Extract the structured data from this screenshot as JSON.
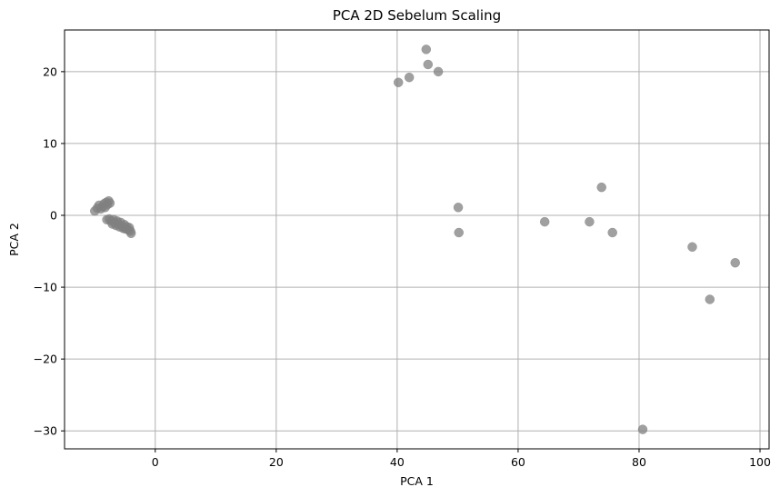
{
  "chart_data": {
    "type": "scatter",
    "title": "PCA 2D Sebelum Scaling",
    "xlabel": "PCA 1",
    "ylabel": "PCA 2",
    "xlim": [
      -15,
      101.5
    ],
    "ylim": [
      -32.5,
      25.8
    ],
    "x_ticks": [
      0,
      20,
      40,
      60,
      80,
      100
    ],
    "y_ticks": [
      -30,
      -20,
      -10,
      0,
      10,
      20
    ],
    "x_tick_labels": [
      "0",
      "20",
      "40",
      "60",
      "80",
      "100"
    ],
    "y_tick_labels": [
      "−30",
      "−20",
      "−10",
      "0",
      "10",
      "20"
    ],
    "grid": true,
    "marker_color": "#808080",
    "marker_opacity": 0.75,
    "points": [
      {
        "x": -10.0,
        "y": 0.6
      },
      {
        "x": -9.6,
        "y": 1.0
      },
      {
        "x": -9.3,
        "y": 1.4
      },
      {
        "x": -9.0,
        "y": 0.9
      },
      {
        "x": -8.7,
        "y": 1.2
      },
      {
        "x": -8.5,
        "y": 1.6
      },
      {
        "x": -8.3,
        "y": 1.1
      },
      {
        "x": -8.1,
        "y": 1.8
      },
      {
        "x": -7.9,
        "y": 1.5
      },
      {
        "x": -7.7,
        "y": 2.0
      },
      {
        "x": -7.5,
        "y": 1.7
      },
      {
        "x": -8.0,
        "y": -0.6
      },
      {
        "x": -7.6,
        "y": -0.5
      },
      {
        "x": -7.3,
        "y": -0.8
      },
      {
        "x": -7.1,
        "y": -1.2
      },
      {
        "x": -6.9,
        "y": -0.6
      },
      {
        "x": -6.7,
        "y": -1.0
      },
      {
        "x": -6.5,
        "y": -1.4
      },
      {
        "x": -6.3,
        "y": -0.8
      },
      {
        "x": -6.1,
        "y": -1.2
      },
      {
        "x": -5.9,
        "y": -1.6
      },
      {
        "x": -5.7,
        "y": -1.0
      },
      {
        "x": -5.5,
        "y": -1.5
      },
      {
        "x": -5.3,
        "y": -1.8
      },
      {
        "x": -5.1,
        "y": -1.3
      },
      {
        "x": -4.9,
        "y": -1.9
      },
      {
        "x": -4.7,
        "y": -1.6
      },
      {
        "x": -4.5,
        "y": -2.0
      },
      {
        "x": -4.3,
        "y": -1.7
      },
      {
        "x": -4.1,
        "y": -2.2
      },
      {
        "x": -4.0,
        "y": -2.5
      },
      {
        "x": 40.2,
        "y": 18.5
      },
      {
        "x": 42.0,
        "y": 19.2
      },
      {
        "x": 44.8,
        "y": 23.1
      },
      {
        "x": 45.1,
        "y": 21.0
      },
      {
        "x": 46.8,
        "y": 20.0
      },
      {
        "x": 50.1,
        "y": 1.1
      },
      {
        "x": 50.2,
        "y": -2.4
      },
      {
        "x": 64.4,
        "y": -0.9
      },
      {
        "x": 71.8,
        "y": -0.9
      },
      {
        "x": 73.8,
        "y": 3.9
      },
      {
        "x": 75.6,
        "y": -2.4
      },
      {
        "x": 80.6,
        "y": -29.8
      },
      {
        "x": 88.8,
        "y": -4.4
      },
      {
        "x": 91.7,
        "y": -11.7
      },
      {
        "x": 95.9,
        "y": -6.6
      }
    ]
  }
}
